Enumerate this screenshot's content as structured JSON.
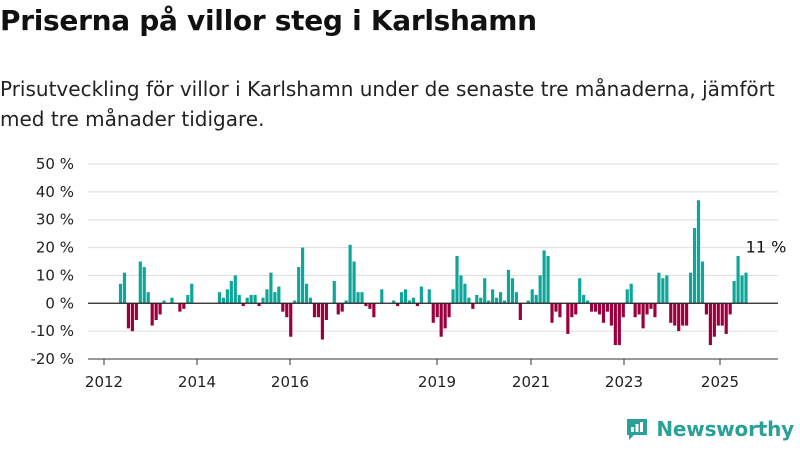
{
  "title": "Priserna på villor steg i Karlshamn",
  "subtitle": "Prisutveckling för villor i Karlshamn under de senaste tre månaderna, jämfört med tre månader tidigare.",
  "brand": {
    "name": "Newsworthy",
    "color": "#2aa198"
  },
  "chart_data": {
    "type": "bar",
    "title": "Priserna på villor steg i Karlshamn",
    "ylabel": "",
    "xlabel": "",
    "ylim": [
      -20,
      50
    ],
    "yticks": [
      -20,
      -10,
      0,
      10,
      20,
      30,
      40,
      50
    ],
    "y_unit": " %",
    "x_ticks": [
      "2012",
      "2014",
      "2016",
      "2019",
      "2021",
      "2023",
      "2025"
    ],
    "grid": true,
    "colors": {
      "positive": "#0ea699",
      "negative": "#99003d"
    },
    "annotation": {
      "text": "11 %"
    },
    "series": [
      {
        "name": "",
        "values": [
          7,
          11,
          -9,
          -10,
          -6,
          15,
          13,
          4,
          -8,
          -6,
          -4,
          1,
          0,
          2,
          0,
          -3,
          -2,
          3,
          7,
          0,
          0,
          0,
          0,
          0,
          0,
          4,
          2,
          5,
          8,
          10,
          3,
          -1,
          2,
          3,
          3,
          -1,
          2,
          5,
          11,
          4,
          6,
          -3,
          -5,
          -12,
          1,
          13,
          20,
          7,
          2,
          -5,
          -5,
          -13,
          -6,
          0,
          8,
          -4,
          -3,
          1,
          21,
          15,
          4,
          4,
          -1,
          -2,
          -5,
          0,
          5,
          0,
          0,
          1,
          -1,
          4,
          5,
          1,
          2,
          -1,
          6,
          0,
          5,
          -7,
          -5,
          -12,
          -9,
          -5,
          5,
          17,
          10,
          7,
          2,
          -2,
          3,
          2,
          9,
          1,
          5,
          2,
          4,
          1,
          12,
          9,
          4,
          -6,
          0,
          1,
          5,
          3,
          10,
          19,
          17,
          -7,
          -3,
          -5,
          0,
          -11,
          -5,
          -4,
          9,
          3,
          1,
          -3,
          -3,
          -4,
          -7,
          -3,
          -8,
          -15,
          -15,
          -5,
          5,
          7,
          -5,
          -4,
          -9,
          -4,
          -2,
          -5,
          11,
          9,
          10,
          -7,
          -8,
          -10,
          -8,
          -8,
          11,
          27,
          37,
          15,
          -4,
          -15,
          -12,
          -8,
          -8,
          -11,
          -4,
          8,
          17,
          10,
          11
        ]
      }
    ]
  }
}
